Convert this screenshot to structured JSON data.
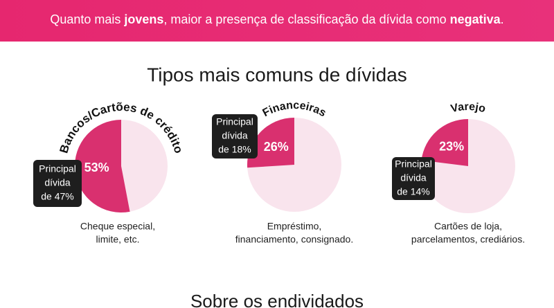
{
  "banner": {
    "segments": [
      "Quanto mais ",
      "jovens",
      ", maior a presença de classificação da dívida como ",
      "negativa",
      "."
    ]
  },
  "heading": "Tipos mais comuns de dívidas",
  "chart_data": [
    {
      "type": "pie",
      "title": "Bancos/Cartões de crédito",
      "values": [
        53
      ],
      "value_labels": [
        "53%"
      ],
      "color": "#d9306f",
      "annotation": [
        "Principal",
        "dívida",
        "de 47%"
      ],
      "caption": [
        "Cheque especial,",
        "limite, etc."
      ]
    },
    {
      "type": "pie",
      "title": "Financeiras",
      "values": [
        26
      ],
      "value_labels": [
        "26%"
      ],
      "color": "#d9306f",
      "annotation": [
        "Principal",
        "dívida",
        "de 18%"
      ],
      "caption": [
        "Empréstimo,",
        "financiamento, consignado."
      ]
    },
    {
      "type": "pie",
      "title": "Varejo",
      "values": [
        23
      ],
      "value_labels": [
        "23%"
      ],
      "color": "#d9306f",
      "annotation": [
        "Principal",
        "dívida",
        "de 14%"
      ],
      "caption": [
        "Cartões de loja,",
        "parcelamentos, crediários."
      ]
    }
  ],
  "footer_heading": "Sobre os endividados"
}
